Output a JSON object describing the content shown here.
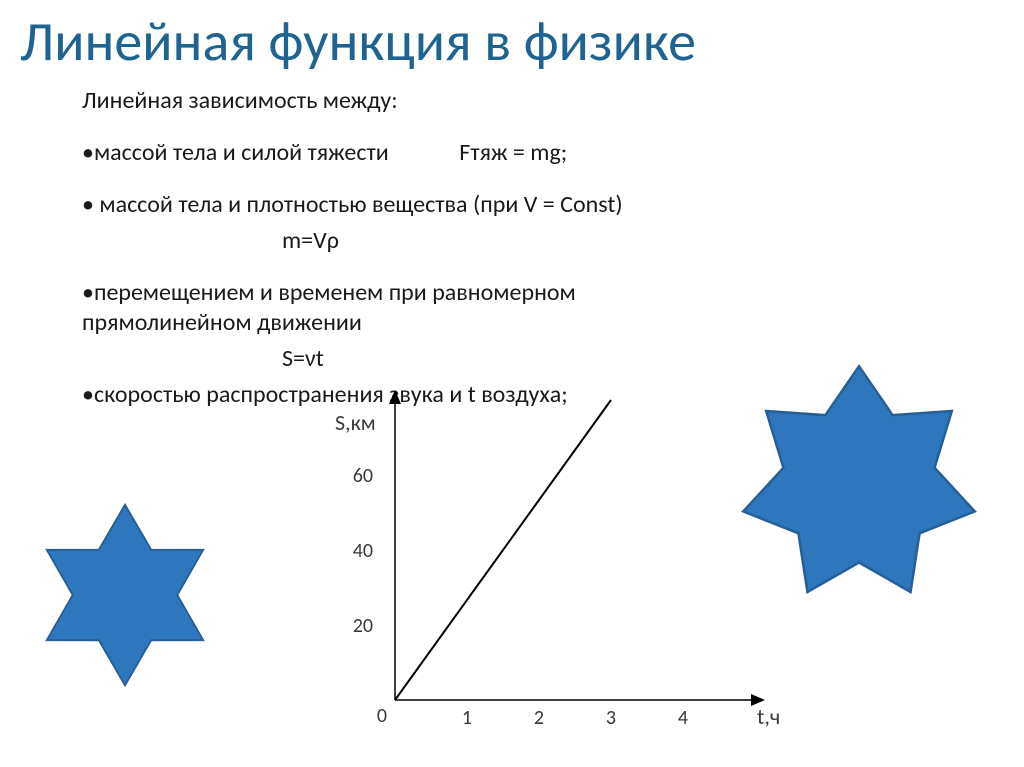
{
  "title": "Линейная функция в физике",
  "body": {
    "intro": "Линейная зависимость между:",
    "b1_text": "•массой тела и силой тяжести",
    "b1_formula": "Fтяж = mg;",
    "b2_text": "• массой тела и плотностью вещества (при V = Const)",
    "b2_formula": "m=Vρ",
    "b3_text": "•перемещением и временем при  равномерном прямолинейном движении",
    "b3_formula": "S=νt",
    "b4_text": "•скоростью распространения звука и t воздуха;"
  },
  "chart": {
    "type": "line",
    "y_axis_label": "S,км",
    "x_axis_label": "t,ч",
    "origin_label": "0",
    "y_ticks": [
      20,
      40,
      60
    ],
    "x_ticks": [
      1,
      2,
      3,
      4
    ],
    "ylim": [
      0,
      80
    ],
    "xlim": [
      0,
      5
    ],
    "line_points": [
      [
        0,
        0
      ],
      [
        3,
        80
      ]
    ],
    "axis_color": "#000000",
    "line_color": "#000000",
    "line_width": 2,
    "tick_fontsize": 20,
    "label_fontsize": 22,
    "label_color": "#3a3a3a",
    "background_color": "#ffffff"
  },
  "decor": {
    "star6_fill": "#2e77bc",
    "star7_fill": "#2e77bc"
  },
  "colors": {
    "title": "#1f6391",
    "text": "#1a1a1a",
    "background": "#ffffff"
  }
}
